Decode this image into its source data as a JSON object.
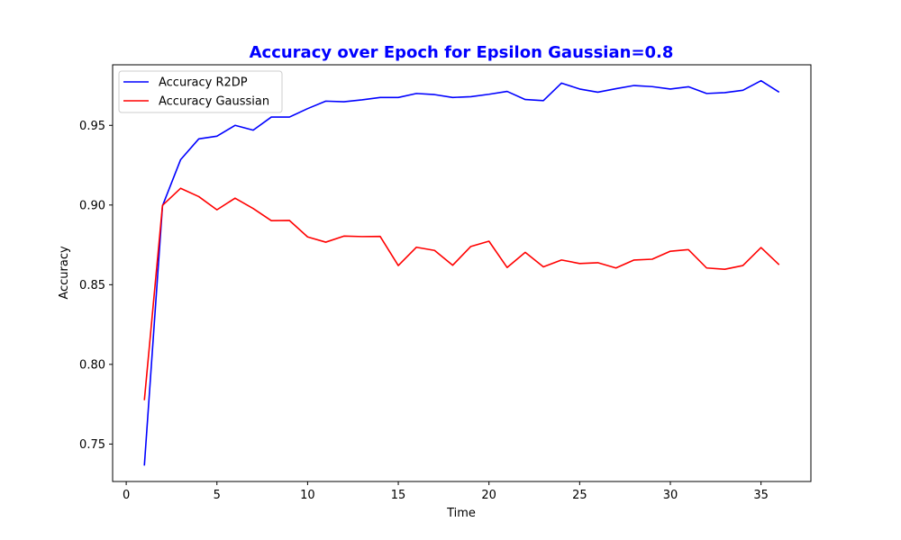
{
  "chart_data": {
    "type": "line",
    "title": "Accuracy over Epoch for Epsilon Gaussian=0.8",
    "title_color": "#0000ff",
    "xlabel": "Time",
    "ylabel": "Accuracy",
    "xlim": [
      -0.75,
      37.75
    ],
    "ylim": [
      0.7265,
      0.988
    ],
    "xticks": [
      0,
      5,
      10,
      15,
      20,
      25,
      30,
      35
    ],
    "yticks": [
      0.75,
      0.8,
      0.85,
      0.9,
      0.95
    ],
    "ytick_labels": [
      "0.75",
      "0.80",
      "0.85",
      "0.90",
      "0.95"
    ],
    "grid": false,
    "legend_position": "top-left",
    "x": [
      1,
      2,
      3,
      4,
      5,
      6,
      7,
      8,
      9,
      10,
      11,
      12,
      13,
      14,
      15,
      16,
      17,
      18,
      19,
      20,
      21,
      22,
      23,
      24,
      25,
      26,
      27,
      28,
      29,
      30,
      31,
      32,
      33,
      34,
      35,
      36
    ],
    "series": [
      {
        "name": "Accuracy R2DP",
        "color": "#0000ff",
        "values": [
          0.7365,
          0.8995,
          0.9285,
          0.9415,
          0.9432,
          0.95,
          0.947,
          0.9552,
          0.9552,
          0.9605,
          0.9652,
          0.9648,
          0.966,
          0.9675,
          0.9675,
          0.97,
          0.9693,
          0.9675,
          0.968,
          0.9695,
          0.9713,
          0.9662,
          0.9655,
          0.9765,
          0.9728,
          0.9708,
          0.973,
          0.975,
          0.9743,
          0.9728,
          0.9742,
          0.97,
          0.9705,
          0.972,
          0.978,
          0.9708
        ]
      },
      {
        "name": "Accuracy Gaussian",
        "color": "#ff0000",
        "values": [
          0.7775,
          0.8998,
          0.9105,
          0.9053,
          0.897,
          0.9043,
          0.8978,
          0.8902,
          0.8903,
          0.88,
          0.8767,
          0.8805,
          0.8802,
          0.8803,
          0.862,
          0.8735,
          0.8715,
          0.8622,
          0.874,
          0.8773,
          0.8608,
          0.8703,
          0.8612,
          0.8655,
          0.8633,
          0.8638,
          0.8605,
          0.8655,
          0.866,
          0.871,
          0.872,
          0.8605,
          0.8597,
          0.862,
          0.8733,
          0.8625
        ]
      }
    ]
  }
}
